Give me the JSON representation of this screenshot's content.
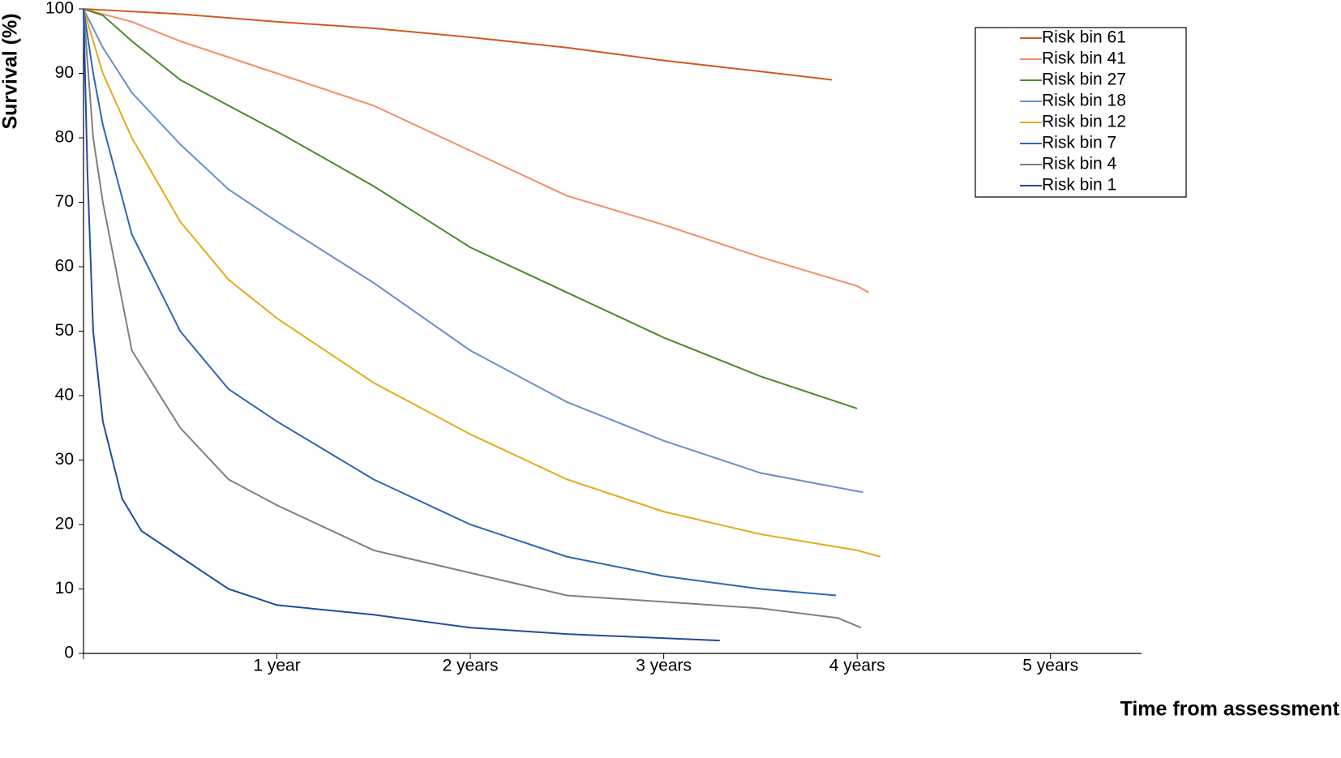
{
  "chart_data": {
    "type": "line",
    "y_label": "Survival (%)",
    "x_label": "Time from assessment",
    "xlim": [
      0,
      5.5
    ],
    "xticks": [
      {
        "value": 1,
        "label": "1 year"
      },
      {
        "value": 2,
        "label": "2 years"
      },
      {
        "value": 3,
        "label": "3 years"
      },
      {
        "value": 4,
        "label": "4 years"
      },
      {
        "value": 5,
        "label": "5 years"
      }
    ],
    "ylim": [
      0,
      100
    ],
    "yticks": [
      0,
      10,
      20,
      30,
      40,
      50,
      60,
      70,
      80,
      90,
      100
    ],
    "legend": "top-right",
    "series": [
      {
        "name": "Risk bin 61",
        "color": "#d2591f",
        "x": [
          0,
          0.5,
          1,
          1.5,
          2,
          2.5,
          3,
          3.5,
          3.87
        ],
        "values": [
          100,
          99.2,
          98,
          97,
          95.6,
          94,
          92,
          90.3,
          89
        ]
      },
      {
        "name": "Risk bin 41",
        "color": "#f28e6b",
        "x": [
          0,
          0.25,
          0.5,
          1,
          1.5,
          2,
          2.5,
          3,
          3.5,
          4,
          4.06
        ],
        "values": [
          100,
          98,
          95,
          90,
          85,
          78,
          71,
          66.5,
          61.5,
          57,
          56
        ]
      },
      {
        "name": "Risk bin 27",
        "color": "#4a8a2a",
        "x": [
          0,
          0.1,
          0.25,
          0.5,
          1,
          1.5,
          2,
          2.5,
          3,
          3.5,
          4
        ],
        "values": [
          100,
          99,
          95,
          89,
          81,
          72.5,
          63,
          56,
          49,
          43,
          38
        ]
      },
      {
        "name": "Risk bin 18",
        "color": "#6b8fc8",
        "x": [
          0,
          0.1,
          0.25,
          0.5,
          0.75,
          1,
          1.5,
          2,
          2.5,
          3,
          3.5,
          4.03
        ],
        "values": [
          100,
          94,
          87,
          79,
          72,
          67,
          57.5,
          47,
          39,
          33,
          28,
          25
        ]
      },
      {
        "name": "Risk bin 12",
        "color": "#e5a91a",
        "x": [
          0,
          0.1,
          0.25,
          0.5,
          0.75,
          1,
          1.5,
          2,
          2.5,
          3,
          3.5,
          4,
          4.12
        ],
        "values": [
          100,
          90,
          80,
          67,
          58,
          52,
          42,
          34,
          27,
          22,
          18.5,
          16,
          15
        ]
      },
      {
        "name": "Risk bin 7",
        "color": "#2e66b0",
        "x": [
          0,
          0.05,
          0.1,
          0.25,
          0.5,
          0.75,
          1,
          1.5,
          2,
          2.5,
          3,
          3.5,
          3.89
        ],
        "values": [
          100,
          90,
          82,
          65,
          50,
          41,
          36,
          27,
          20,
          15,
          12,
          10,
          9
        ]
      },
      {
        "name": "Risk bin 4",
        "color": "#7f7f7f",
        "x": [
          0,
          0.05,
          0.1,
          0.25,
          0.5,
          0.75,
          1,
          1.5,
          2,
          2.5,
          3,
          3.5,
          3.9,
          4.02
        ],
        "values": [
          100,
          80,
          70,
          47,
          35,
          27,
          23,
          16,
          12.5,
          9,
          8,
          7,
          5.5,
          4
        ]
      },
      {
        "name": "Risk bin 1",
        "color": "#1f4e9c",
        "x": [
          0,
          0.02,
          0.05,
          0.1,
          0.2,
          0.3,
          0.5,
          0.75,
          1,
          1.5,
          2,
          2.5,
          3.29
        ],
        "values": [
          100,
          75,
          50,
          36,
          24,
          19,
          15,
          10,
          7.5,
          6,
          4,
          3,
          2
        ]
      }
    ]
  }
}
